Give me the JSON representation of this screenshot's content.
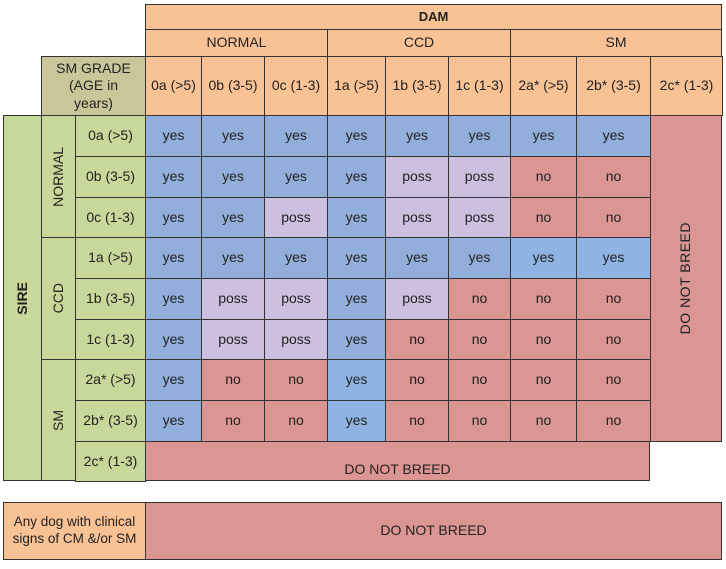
{
  "header": {
    "dam": "DAM",
    "groups": [
      "NORMAL",
      "CCD",
      "SM"
    ],
    "sm_grade": "SM GRADE (AGE in years)",
    "cols": [
      "0a (>5)",
      "0b (3-5)",
      "0c (1-3)",
      "1a (>5)",
      "1b (3-5)",
      "1c (1-3)",
      "2a* (>5)",
      "2b* (3-5)",
      "2c* (1-3)"
    ]
  },
  "sire": {
    "label": "SIRE",
    "groups": [
      "NORMAL",
      "CCD",
      "SM"
    ],
    "rows": [
      "0a (>5)",
      "0b (3-5)",
      "0c (1-3)",
      "1a (>5)",
      "1b (3-5)",
      "1c (1-3)",
      "2a* (>5)",
      "2b* (3-5)",
      "2c* (1-3)"
    ]
  },
  "grid": [
    [
      "yes",
      "yes",
      "yes",
      "yes",
      "yes",
      "yes",
      "yes",
      "yes"
    ],
    [
      "yes",
      "yes",
      "yes",
      "yes",
      "poss",
      "poss",
      "no",
      "no"
    ],
    [
      "yes",
      "yes",
      "poss",
      "yes",
      "poss",
      "poss",
      "no",
      "no"
    ],
    [
      "yes",
      "yes",
      "yes",
      "yes",
      "yes",
      "yes",
      "yes",
      "yes"
    ],
    [
      "yes",
      "poss",
      "poss",
      "yes",
      "poss",
      "no",
      "no",
      "no"
    ],
    [
      "yes",
      "poss",
      "poss",
      "yes",
      "no",
      "no",
      "no",
      "no"
    ],
    [
      "yes",
      "no",
      "no",
      "yes",
      "no",
      "no",
      "no",
      "no"
    ],
    [
      "yes",
      "no",
      "no",
      "yes",
      "no",
      "no",
      "no",
      "no"
    ]
  ],
  "do_not_breed": "DO NOT BREED",
  "clinical": {
    "label": "Any dog with clinical signs of CM &/or SM",
    "value": "DO NOT BREED"
  },
  "colors": {
    "yes": "#92aedb",
    "yes_bright": "#8fb4e3",
    "poss": "#ccc0de",
    "no": "#db9592"
  }
}
